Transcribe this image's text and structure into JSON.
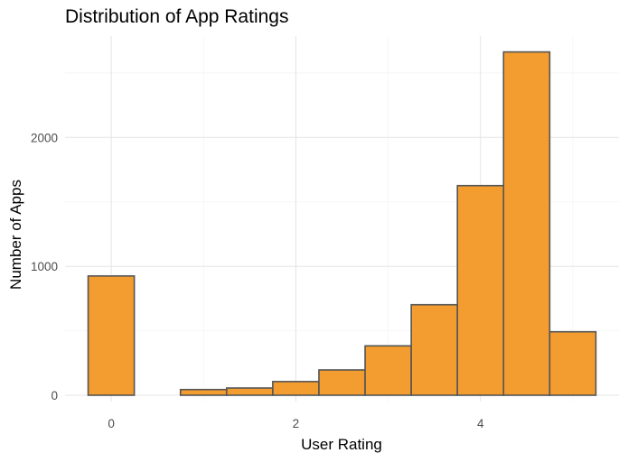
{
  "chart_data": {
    "type": "bar",
    "title": "Distribution of App Ratings",
    "xlabel": "User Rating",
    "ylabel": "Number of Apps",
    "bin_width": 0.5,
    "bins": [
      {
        "center": 0.0,
        "count": 925
      },
      {
        "center": 0.5,
        "count": 0
      },
      {
        "center": 1.0,
        "count": 44
      },
      {
        "center": 1.5,
        "count": 56
      },
      {
        "center": 2.0,
        "count": 106
      },
      {
        "center": 2.5,
        "count": 196
      },
      {
        "center": 3.0,
        "count": 383
      },
      {
        "center": 3.5,
        "count": 702
      },
      {
        "center": 4.0,
        "count": 1626
      },
      {
        "center": 4.5,
        "count": 2663
      },
      {
        "center": 5.0,
        "count": 492
      }
    ],
    "xlim": [
      -0.5,
      5.5
    ],
    "ylim": [
      0,
      2800
    ],
    "x_ticks": [
      0,
      2,
      4
    ],
    "y_ticks": [
      0,
      1000,
      2000
    ],
    "grid": true,
    "colors": {
      "bar_fill": "#F39C30",
      "bar_stroke": "#555555"
    }
  }
}
